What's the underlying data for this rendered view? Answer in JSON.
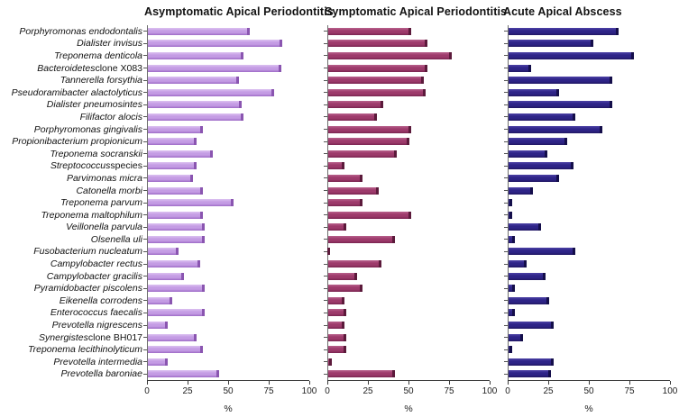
{
  "figure_title": "",
  "panels": [
    {
      "title": "Asymptomatic Apical Periodontitis",
      "fill": "#c49ce4",
      "light": "#dcc1f1",
      "dark": "#9d6ac6",
      "cap": "#8a55b0"
    },
    {
      "title": "Symptomatic Apical Periodontitis",
      "fill": "#9d3a6b",
      "light": "#b8618c",
      "dark": "#7a2450",
      "cap": "#5c1a3b"
    },
    {
      "title": "Acute Apical Abscess",
      "fill": "#2e2487",
      "light": "#4d42a6",
      "dark": "#211763",
      "cap": "#140e4a"
    }
  ],
  "chart_data": {
    "type": "bar",
    "orientation": "horizontal",
    "xlabel": "%",
    "xlim": [
      0,
      100
    ],
    "x_ticks": [
      0,
      25,
      50,
      75,
      100
    ],
    "grid": false,
    "legend": false,
    "categories": [
      "Porphyromonas endodontalis",
      "Dialister invisus",
      "Treponema denticola",
      "Bacteroidetes clone X083",
      "Tannerella forsythia",
      "Pseudoramibacter alactolyticus",
      "Dialister pneumosintes",
      "Filifactor alocis",
      "Porphyromonas gingivalis",
      "Propionibacterium propionicum",
      "Treponema socranskii",
      "Streptococcus species",
      "Parvimonas micra",
      "Catonella morbi",
      "Treponema parvum",
      "Treponema maltophilum",
      "Veillonella parvula",
      "Olsenella uli",
      "Fusobacterium nucleatum",
      "Campylobacter rectus",
      "Campylobacter gracilis",
      "Pyramidobacter piscolens",
      "Eikenella corrodens",
      "Enterococcus faecalis",
      "Prevotella nigrescens",
      "Synergistes clone BH017",
      "Treponema lecithinolyticum",
      "Prevotella intermedia",
      "Prevotella baroniae"
    ],
    "label_parts": [
      {
        "italic": "Porphyromonas endodontalis",
        "plain": ""
      },
      {
        "italic": "Dialister invisus",
        "plain": ""
      },
      {
        "italic": "Treponema denticola",
        "plain": ""
      },
      {
        "italic": "Bacteroidetes",
        "plain": " clone X083"
      },
      {
        "italic": "Tannerella forsythia",
        "plain": ""
      },
      {
        "italic": "Pseudoramibacter alactolyticus",
        "plain": ""
      },
      {
        "italic": "Dialister pneumosintes",
        "plain": ""
      },
      {
        "italic": "Filifactor alocis",
        "plain": ""
      },
      {
        "italic": "Porphyromonas gingivalis",
        "plain": ""
      },
      {
        "italic": "Propionibacterium propionicum",
        "plain": ""
      },
      {
        "italic": "Treponema socranskii",
        "plain": ""
      },
      {
        "italic": "Streptococcus",
        "plain": " species"
      },
      {
        "italic": "Parvimonas micra",
        "plain": ""
      },
      {
        "italic": "Catonella morbi",
        "plain": ""
      },
      {
        "italic": "Treponema parvum",
        "plain": ""
      },
      {
        "italic": "Treponema maltophilum",
        "plain": ""
      },
      {
        "italic": "Veillonella parvula",
        "plain": ""
      },
      {
        "italic": "Olsenella uli",
        "plain": ""
      },
      {
        "italic": "Fusobacterium nucleatum",
        "plain": ""
      },
      {
        "italic": "Campylobacter rectus",
        "plain": ""
      },
      {
        "italic": "Campylobacter gracilis",
        "plain": ""
      },
      {
        "italic": "Pyramidobacter piscolens",
        "plain": ""
      },
      {
        "italic": "Eikenella corrodens",
        "plain": ""
      },
      {
        "italic": "Enterococcus faecalis",
        "plain": ""
      },
      {
        "italic": "Prevotella nigrescens",
        "plain": ""
      },
      {
        "italic": "Synergistes",
        "plain": " clone BH017"
      },
      {
        "italic": "Treponema lecithinolyticum",
        "plain": ""
      },
      {
        "italic": "Prevotella intermedia",
        "plain": ""
      },
      {
        "italic": "Prevotella baroniae",
        "plain": ""
      }
    ],
    "series": [
      {
        "name": "Asymptomatic Apical Periodontitis",
        "values": [
          63,
          83,
          59,
          82,
          56,
          78,
          58,
          59,
          34,
          30,
          40,
          30,
          28,
          34,
          53,
          34,
          35,
          35,
          19,
          32,
          22,
          35,
          15,
          35,
          12,
          30,
          34,
          12,
          44
        ]
      },
      {
        "name": "Symptomatic Apical Periodontitis",
        "values": [
          51,
          61,
          76,
          61,
          59,
          60,
          34,
          30,
          51,
          50,
          42,
          10,
          21,
          31,
          21,
          51,
          11,
          41,
          1,
          33,
          18,
          21,
          10,
          11,
          10,
          11,
          11,
          2,
          41
        ]
      },
      {
        "name": "Acute Apical Abscess",
        "values": [
          68,
          52,
          77,
          14,
          64,
          31,
          64,
          41,
          58,
          36,
          24,
          40,
          31,
          15,
          2,
          2,
          20,
          4,
          41,
          11,
          23,
          4,
          25,
          4,
          28,
          9,
          2,
          28,
          26
        ]
      }
    ]
  }
}
